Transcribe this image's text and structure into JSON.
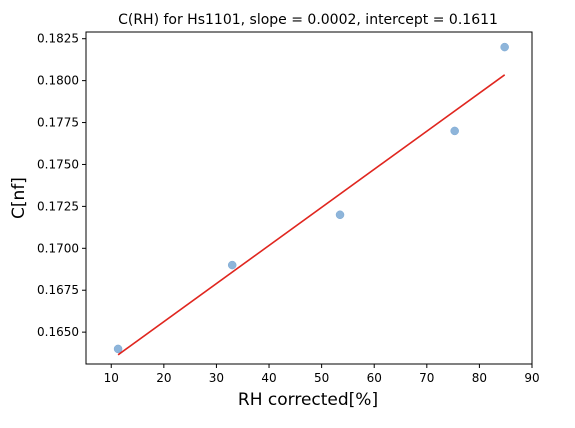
{
  "chart_data": {
    "type": "scatter",
    "title": "C(RH) for Hs1101, slope = 0.0002, intercept = 0.1611",
    "xlabel": "RH corrected[%]",
    "ylabel": "C[nf]",
    "xlim": [
      5.2,
      90
    ],
    "ylim": [
      0.1631,
      0.1829
    ],
    "xticks": [
      10,
      20,
      30,
      40,
      50,
      60,
      70,
      80,
      90
    ],
    "xtick_labels": [
      "10",
      "20",
      "30",
      "40",
      "50",
      "60",
      "70",
      "80",
      "90"
    ],
    "yticks": [
      0.165,
      0.1675,
      0.17,
      0.1725,
      0.175,
      0.1775,
      0.18,
      0.1825
    ],
    "ytick_labels": [
      "0.1650",
      "0.1675",
      "0.1700",
      "0.1725",
      "0.1750",
      "0.1775",
      "0.1800",
      "0.1825"
    ],
    "grid": false,
    "series": [
      {
        "type": "scatter",
        "color": "#7aa8d4",
        "x": [
          11.3,
          33.0,
          53.5,
          75.3,
          84.8
        ],
        "y": [
          0.164,
          0.169,
          0.172,
          0.177,
          0.182
        ]
      },
      {
        "type": "line",
        "color": "#e0261f",
        "x": [
          11.3,
          84.8
        ],
        "y": [
          0.16365,
          0.18035
        ]
      }
    ]
  }
}
